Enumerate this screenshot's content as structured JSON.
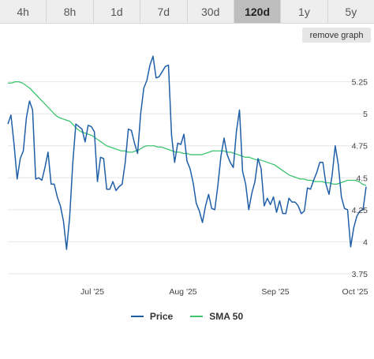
{
  "tabs": [
    {
      "label": "4h",
      "active": false
    },
    {
      "label": "8h",
      "active": false
    },
    {
      "label": "1d",
      "active": false
    },
    {
      "label": "7d",
      "active": false
    },
    {
      "label": "30d",
      "active": false
    },
    {
      "label": "120d",
      "active": true
    },
    {
      "label": "1y",
      "active": false
    },
    {
      "label": "5y",
      "active": false
    }
  ],
  "remove_graph_label": "remove graph",
  "colors": {
    "price": "#1f5fa8",
    "sma": "#3cc46f",
    "grid": "#e6e6e6"
  },
  "chart_data": {
    "type": "line",
    "title": "",
    "xlabel": "",
    "ylabel": "",
    "x_ticks": [
      "Jul '25",
      "Aug '25",
      "Sep '25",
      "Oct '25"
    ],
    "y_ticks": [
      3.75,
      4,
      4.25,
      4.5,
      4.75,
      5,
      5.25
    ],
    "ylim": [
      3.7,
      5.55
    ],
    "grid": "horizontal",
    "legend": "bottom-center",
    "series": [
      {
        "name": "Price",
        "values": [
          4.92,
          4.99,
          4.76,
          4.49,
          4.65,
          4.71,
          4.97,
          5.1,
          5.03,
          4.49,
          4.5,
          4.48,
          4.58,
          4.7,
          4.45,
          4.45,
          4.35,
          4.28,
          4.16,
          3.94,
          4.19,
          4.61,
          4.92,
          4.9,
          4.88,
          4.78,
          4.91,
          4.9,
          4.86,
          4.47,
          4.66,
          4.65,
          4.41,
          4.41,
          4.47,
          4.4,
          4.43,
          4.45,
          4.62,
          4.88,
          4.87,
          4.77,
          4.69,
          5.0,
          5.2,
          5.26,
          5.38,
          5.45,
          5.28,
          5.29,
          5.33,
          5.37,
          5.38,
          4.83,
          4.62,
          4.77,
          4.76,
          4.84,
          4.63,
          4.57,
          4.46,
          4.3,
          4.24,
          4.15,
          4.28,
          4.37,
          4.26,
          4.25,
          4.44,
          4.67,
          4.81,
          4.68,
          4.62,
          4.58,
          4.86,
          5.03,
          4.55,
          4.45,
          4.25,
          4.38,
          4.47,
          4.65,
          4.57,
          4.28,
          4.34,
          4.29,
          4.35,
          4.23,
          4.32,
          4.22,
          4.22,
          4.34,
          4.31,
          4.31,
          4.28,
          4.22,
          4.24,
          4.42,
          4.41,
          4.48,
          4.54,
          4.62,
          4.62,
          4.45,
          4.37,
          4.52,
          4.75,
          4.6,
          4.35,
          4.26,
          4.25,
          3.96,
          4.11,
          4.2,
          4.24,
          4.25,
          4.43
        ]
      },
      {
        "name": "SMA 50",
        "values": [
          5.24,
          5.24,
          5.25,
          5.25,
          5.24,
          5.22,
          5.2,
          5.17,
          5.14,
          5.11,
          5.08,
          5.05,
          5.02,
          4.99,
          4.97,
          4.96,
          4.95,
          4.94,
          4.91,
          4.88,
          4.86,
          4.85,
          4.84,
          4.83,
          4.81,
          4.79,
          4.77,
          4.75,
          4.74,
          4.73,
          4.72,
          4.71,
          4.71,
          4.7,
          4.7,
          4.71,
          4.72,
          4.74,
          4.75,
          4.75,
          4.75,
          4.74,
          4.74,
          4.73,
          4.72,
          4.71,
          4.7,
          4.7,
          4.69,
          4.69,
          4.68,
          4.68,
          4.68,
          4.68,
          4.69,
          4.7,
          4.71,
          4.71,
          4.71,
          4.71,
          4.7,
          4.7,
          4.69,
          4.68,
          4.67,
          4.66,
          4.66,
          4.65,
          4.64,
          4.64,
          4.63,
          4.62,
          4.61,
          4.6,
          4.58,
          4.56,
          4.54,
          4.52,
          4.51,
          4.5,
          4.49,
          4.49,
          4.48,
          4.48,
          4.47,
          4.47,
          4.47,
          4.46,
          4.46,
          4.45,
          4.45,
          4.46,
          4.47,
          4.48,
          4.48,
          4.48,
          4.47,
          4.45,
          4.44
        ]
      }
    ]
  }
}
